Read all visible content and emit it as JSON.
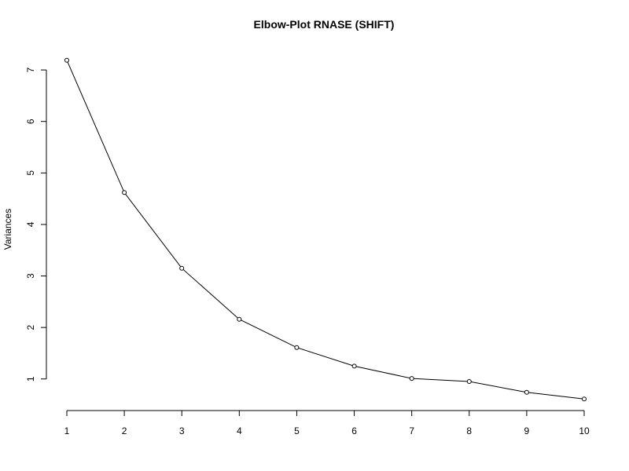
{
  "chart_data": {
    "type": "line",
    "title": "Elbow-Plot RNASE (SHIFT)",
    "xlabel": "",
    "ylabel": "Variances",
    "x": [
      1,
      2,
      3,
      4,
      5,
      6,
      7,
      8,
      9,
      10
    ],
    "series": [
      {
        "values": [
          7.19,
          4.62,
          3.15,
          2.16,
          1.61,
          1.25,
          1.01,
          0.95,
          0.74,
          0.61
        ]
      }
    ],
    "xlim": [
      1,
      10
    ],
    "ylim": [
      0.6,
      7.2
    ],
    "x_ticks": [
      "1",
      "2",
      "3",
      "4",
      "5",
      "6",
      "7",
      "8",
      "9",
      "10"
    ],
    "y_ticks": [
      "1",
      "2",
      "3",
      "4",
      "5",
      "6",
      "7"
    ],
    "grid": false,
    "legend": "none",
    "line_color": "#000000",
    "marker": "open-circle"
  }
}
